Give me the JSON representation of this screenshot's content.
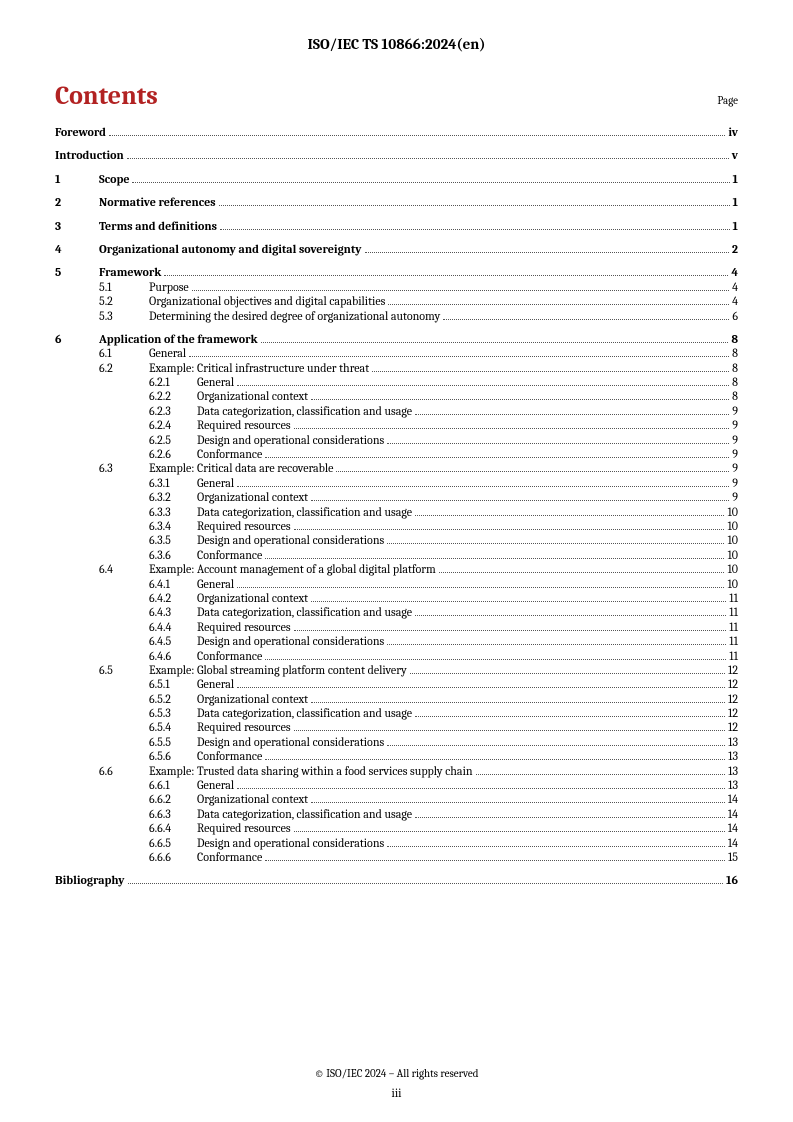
{
  "header": "ISO/IEC TS 10866:2024(en)",
  "contentsTitle": "Contents",
  "pageLabel": "Page",
  "footer": "© ISO/IEC 2024 – All rights reserved",
  "pageNumber": "iii",
  "style": {
    "accent": "#b22222",
    "leaderColor": "#555555",
    "bodyFontSize": 12,
    "headingFontSize": 26,
    "docHeaderFontSize": 15
  },
  "toc": [
    {
      "level": 0,
      "num": "",
      "text": "Foreword",
      "page": "iv",
      "bold": true
    },
    {
      "level": 0,
      "num": "",
      "text": "Introduction",
      "page": "v",
      "bold": true
    },
    {
      "level": 0,
      "num": "1",
      "text": "Scope",
      "page": "1",
      "bold": true
    },
    {
      "level": 0,
      "num": "2",
      "text": "Normative references",
      "page": "1",
      "bold": true
    },
    {
      "level": 0,
      "num": "3",
      "text": "Terms and definitions",
      "page": "1",
      "bold": true
    },
    {
      "level": 0,
      "num": "4",
      "text": "Organizational autonomy and digital sovereignty",
      "page": "2",
      "bold": true
    },
    {
      "level": 0,
      "num": "5",
      "text": "Framework",
      "page": "4",
      "bold": true
    },
    {
      "level": 1,
      "num": "5.1",
      "text": "Purpose",
      "page": "4"
    },
    {
      "level": 1,
      "num": "5.2",
      "text": "Organizational objectives and digital capabilities",
      "page": "4"
    },
    {
      "level": 1,
      "num": "5.3",
      "text": "Determining the desired degree of organizational autonomy",
      "page": "6"
    },
    {
      "level": 0,
      "num": "6",
      "text": "Application of the framework",
      "page": "8",
      "bold": true
    },
    {
      "level": 1,
      "num": "6.1",
      "text": "General",
      "page": "8"
    },
    {
      "level": 1,
      "num": "6.2",
      "text": "Example: Critical infrastructure under threat",
      "page": "8"
    },
    {
      "level": 2,
      "num": "6.2.1",
      "text": "General",
      "page": "8"
    },
    {
      "level": 2,
      "num": "6.2.2",
      "text": "Organizational context",
      "page": "8"
    },
    {
      "level": 2,
      "num": "6.2.3",
      "text": "Data categorization, classification and usage",
      "page": "9"
    },
    {
      "level": 2,
      "num": "6.2.4",
      "text": "Required resources",
      "page": "9"
    },
    {
      "level": 2,
      "num": "6.2.5",
      "text": "Design and operational considerations",
      "page": "9"
    },
    {
      "level": 2,
      "num": "6.2.6",
      "text": "Conformance",
      "page": "9"
    },
    {
      "level": 1,
      "num": "6.3",
      "text": "Example: Critical data are recoverable",
      "page": "9"
    },
    {
      "level": 2,
      "num": "6.3.1",
      "text": "General",
      "page": "9"
    },
    {
      "level": 2,
      "num": "6.3.2",
      "text": "Organizational context",
      "page": "9"
    },
    {
      "level": 2,
      "num": "6.3.3",
      "text": "Data categorization, classification and usage",
      "page": "10"
    },
    {
      "level": 2,
      "num": "6.3.4",
      "text": "Required resources",
      "page": "10"
    },
    {
      "level": 2,
      "num": "6.3.5",
      "text": "Design and operational considerations",
      "page": "10"
    },
    {
      "level": 2,
      "num": "6.3.6",
      "text": "Conformance",
      "page": "10"
    },
    {
      "level": 1,
      "num": "6.4",
      "text": "Example: Account management of a global digital platform",
      "page": "10"
    },
    {
      "level": 2,
      "num": "6.4.1",
      "text": "General",
      "page": "10"
    },
    {
      "level": 2,
      "num": "6.4.2",
      "text": "Organizational context",
      "page": "11"
    },
    {
      "level": 2,
      "num": "6.4.3",
      "text": "Data categorization, classification and usage",
      "page": "11"
    },
    {
      "level": 2,
      "num": "6.4.4",
      "text": "Required resources",
      "page": "11"
    },
    {
      "level": 2,
      "num": "6.4.5",
      "text": "Design and operational considerations",
      "page": "11"
    },
    {
      "level": 2,
      "num": "6.4.6",
      "text": "Conformance",
      "page": "11"
    },
    {
      "level": 1,
      "num": "6.5",
      "text": "Example: Global streaming platform content delivery",
      "page": "12"
    },
    {
      "level": 2,
      "num": "6.5.1",
      "text": "General",
      "page": "12"
    },
    {
      "level": 2,
      "num": "6.5.2",
      "text": "Organizational context",
      "page": "12"
    },
    {
      "level": 2,
      "num": "6.5.3",
      "text": "Data categorization, classification and usage",
      "page": "12"
    },
    {
      "level": 2,
      "num": "6.5.4",
      "text": "Required resources",
      "page": "12"
    },
    {
      "level": 2,
      "num": "6.5.5",
      "text": "Design and operational considerations",
      "page": "13"
    },
    {
      "level": 2,
      "num": "6.5.6",
      "text": "Conformance",
      "page": "13"
    },
    {
      "level": 1,
      "num": "6.6",
      "text": "Example: Trusted data sharing within a food services supply chain",
      "page": "13"
    },
    {
      "level": 2,
      "num": "6.6.1",
      "text": "General",
      "page": "13"
    },
    {
      "level": 2,
      "num": "6.6.2",
      "text": "Organizational context",
      "page": "14"
    },
    {
      "level": 2,
      "num": "6.6.3",
      "text": "Data categorization, classification and usage",
      "page": "14"
    },
    {
      "level": 2,
      "num": "6.6.4",
      "text": "Required resources",
      "page": "14"
    },
    {
      "level": 2,
      "num": "6.6.5",
      "text": "Design and operational considerations",
      "page": "14"
    },
    {
      "level": 2,
      "num": "6.6.6",
      "text": "Conformance",
      "page": "15"
    },
    {
      "level": 0,
      "num": "",
      "text": "Bibliography",
      "page": "16",
      "bold": true
    }
  ]
}
